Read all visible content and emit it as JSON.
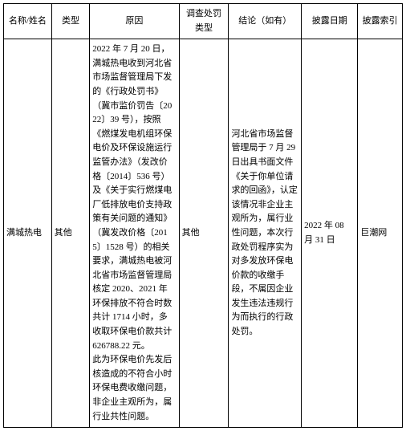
{
  "table": {
    "headers": [
      "名称/姓名",
      "类型",
      "原因",
      "调查处罚类型",
      "结论（如有）",
      "披露日期",
      "披露索引"
    ],
    "row": {
      "name": "满城热电",
      "type": "其他",
      "reason": "2022 年 7 月 20 日，满城热电收到河北省市场监督管理局下发的《行政处罚书》（冀市监价罚告〔2022〕39 号），按照《燃煤发电机组环保电价及环保设施运行监管办法》（发改价格〔2014〕536 号）及《关于实行燃煤电厂低排放电价支持政策有关问题的通知》（冀发改价格〔2015〕1528 号）的相关要求，满城热电被河北省市场监督管理局核定 2020、2021 年环保排放不符合时数共计 1714 小时，多收取环保电价款共计 626788.22 元。\n此为环保电价先发后核造成的不符合小时环保电费收缴问题，非企业主观所为，属行业共性问题。",
      "penalty_type": "其他",
      "conclusion": "河北省市场监督管理局于 7 月 29 日出具书面文件《关于你单位请求的回函》，认定该情况非企业主观所为，属行业性问题，本次行政处罚程序实为对多发放环保电价款的收缴手段，不属因企业发生违法违规行为而执行的行政处罚。",
      "disclosure_date": "2022 年 08 月 31 日",
      "disclosure_index": "巨潮网"
    }
  }
}
